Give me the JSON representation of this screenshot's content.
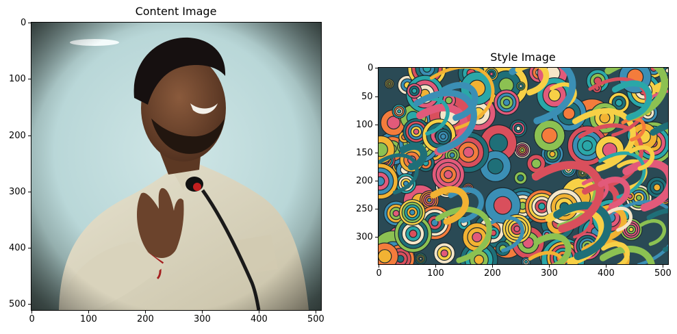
{
  "panels": [
    {
      "title": "Content Image",
      "x_ticks": [
        "0",
        "100",
        "200",
        "300",
        "400",
        "500"
      ],
      "y_ticks": [
        "0",
        "100",
        "200",
        "300",
        "400",
        "500"
      ]
    },
    {
      "title": "Style Image",
      "x_ticks": [
        "0",
        "100",
        "200",
        "300",
        "400",
        "500"
      ],
      "y_ticks": [
        "0",
        "50",
        "100",
        "150",
        "200",
        "250",
        "300"
      ]
    }
  ]
}
